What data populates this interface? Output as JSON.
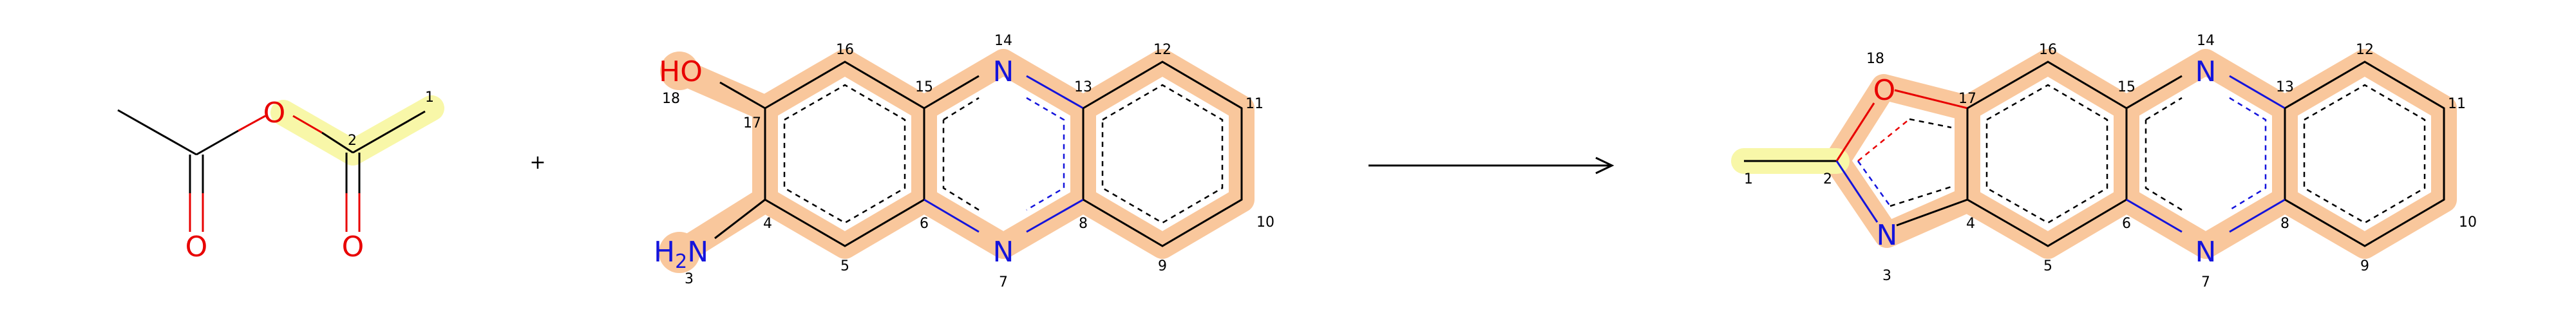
{
  "colors": {
    "bond": "#000000",
    "oxygen": "#e80000",
    "nitrogen": "#1414dc",
    "highlight_orange": "#f9c79c",
    "highlight_yellow": "#f8f7a8",
    "background": "#ffffff"
  },
  "reaction": {
    "plus": "+",
    "arrow_name": "reaction-arrow"
  },
  "reactant1": {
    "atoms": {
      "o_ester": "O",
      "o_carbonyl_left": "O",
      "o_carbonyl_right": "O"
    },
    "numbers": {
      "n1": "1",
      "n2": "2"
    }
  },
  "reactant2": {
    "atoms": {
      "ho": "HO",
      "nh2_h": "H",
      "nh2_sub": "2",
      "nh2_n": "N",
      "n14": "N",
      "n7": "N"
    },
    "numbers": {
      "n16": "16",
      "n15": "15",
      "n14": "14",
      "n13": "13",
      "n12": "12",
      "n11": "11",
      "n17": "17",
      "n18": "18",
      "n4": "4",
      "n3": "3",
      "n5": "5",
      "n6": "6",
      "n7": "7",
      "n8": "8",
      "n9": "9",
      "n10": "10"
    }
  },
  "product": {
    "atoms": {
      "o18": "O",
      "n3": "N",
      "n14": "N",
      "n7": "N"
    },
    "numbers": {
      "n18": "18",
      "n17": "17",
      "n16": "16",
      "n15": "15",
      "n14": "14",
      "n13": "13",
      "n12": "12",
      "n11": "11",
      "n1": "1",
      "n2": "2",
      "n3": "3",
      "n4": "4",
      "n5": "5",
      "n6": "6",
      "n7": "7",
      "n8": "8",
      "n9": "9",
      "n10": "10"
    }
  }
}
